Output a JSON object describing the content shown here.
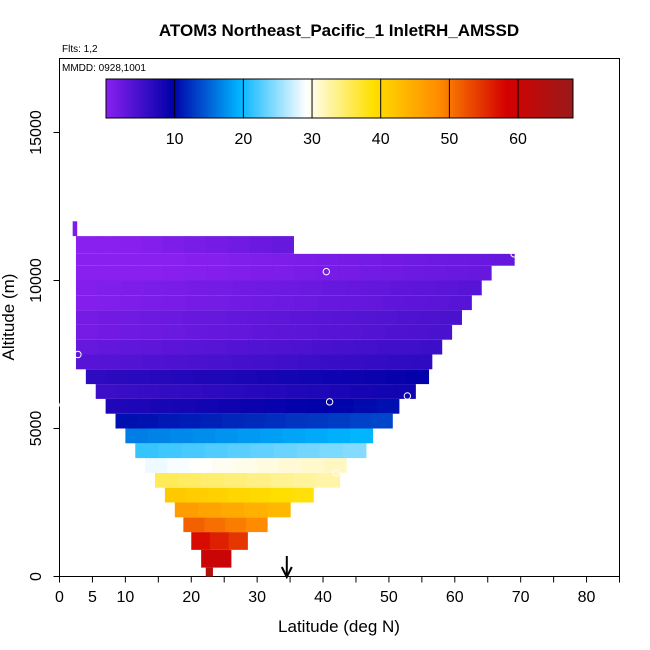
{
  "chart_data": {
    "type": "heatmap",
    "title": "ATOM3 Northeast_Pacific_1 InletRH_AMSSD",
    "flights_note": "Flts: 1,2",
    "date_note": "MMDD: 0928,1001",
    "xlabel": "Latitude (deg N)",
    "ylabel": "Altitude (m)",
    "xlim": [
      0,
      85
    ],
    "ylim": [
      0,
      17500
    ],
    "x_ticks": [
      0,
      5,
      10,
      20,
      30,
      40,
      50,
      60,
      70,
      80
    ],
    "y_ticks": [
      0,
      5000,
      10000,
      15000
    ],
    "colorbar": {
      "range": [
        0,
        68
      ],
      "ticks": [
        10,
        20,
        30,
        40,
        50,
        60
      ],
      "colors": [
        "#8a20f0",
        "#0000a8",
        "#00b4ff",
        "#ffffff",
        "#ffe000",
        "#ff8a00",
        "#d40000",
        "#9a1a1a"
      ]
    },
    "bands": [
      {
        "alt_lo": 0,
        "alt_hi": 300,
        "lat_lo": 22.2,
        "lat_hi": 23.2,
        "rh": 64
      },
      {
        "alt_lo": 300,
        "alt_hi": 900,
        "lat_lo": 21.5,
        "lat_hi": 26.0,
        "rh": 60
      },
      {
        "alt_lo": 900,
        "alt_hi": 1500,
        "lat_lo": 20.0,
        "lat_hi": 28.5,
        "rh": 56
      },
      {
        "alt_lo": 1500,
        "alt_hi": 2000,
        "lat_lo": 18.8,
        "lat_hi": 31.5,
        "rh": 50
      },
      {
        "alt_lo": 2000,
        "alt_hi": 2500,
        "lat_lo": 17.5,
        "lat_hi": 35.0,
        "rh": 45
      },
      {
        "alt_lo": 2500,
        "alt_hi": 3000,
        "lat_lo": 16.0,
        "lat_hi": 38.5,
        "rh": 40
      },
      {
        "alt_lo": 3000,
        "alt_hi": 3500,
        "lat_lo": 14.5,
        "lat_hi": 42.5,
        "rh": 34
      },
      {
        "alt_lo": 3500,
        "alt_hi": 4000,
        "lat_lo": 13.0,
        "lat_hi": 43.5,
        "rh": 30
      },
      {
        "alt_lo": 4000,
        "alt_hi": 4500,
        "lat_lo": 11.5,
        "lat_hi": 46.5,
        "rh": 23
      },
      {
        "alt_lo": 4500,
        "alt_hi": 5000,
        "lat_lo": 10.0,
        "lat_hi": 47.5,
        "rh": 18
      },
      {
        "alt_lo": 5000,
        "alt_hi": 5500,
        "lat_lo": 8.5,
        "lat_hi": 50.5,
        "rh": 12
      },
      {
        "alt_lo": 5500,
        "alt_hi": 6000,
        "lat_lo": 7.0,
        "lat_hi": 51.5,
        "rh": 9
      },
      {
        "alt_lo": 6000,
        "alt_hi": 6500,
        "lat_lo": 5.5,
        "lat_hi": 54.0,
        "rh": 7
      },
      {
        "alt_lo": 6500,
        "alt_hi": 7000,
        "lat_lo": 4.0,
        "lat_hi": 56.0,
        "rh": 8
      },
      {
        "alt_lo": 7000,
        "alt_hi": 7500,
        "lat_lo": 2.5,
        "lat_hi": 56.5,
        "rh": 5
      },
      {
        "alt_lo": 7500,
        "alt_hi": 8000,
        "lat_lo": 2.5,
        "lat_hi": 58.0,
        "rh": 4
      },
      {
        "alt_lo": 8000,
        "alt_hi": 8500,
        "lat_lo": 2.5,
        "lat_hi": 59.5,
        "rh": 3
      },
      {
        "alt_lo": 8500,
        "alt_hi": 9000,
        "lat_lo": 2.5,
        "lat_hi": 61.0,
        "rh": 3
      },
      {
        "alt_lo": 9000,
        "alt_hi": 9500,
        "lat_lo": 2.5,
        "lat_hi": 62.5,
        "rh": 2
      },
      {
        "alt_lo": 9500,
        "alt_hi": 10000,
        "lat_lo": 2.5,
        "lat_hi": 64.0,
        "rh": 2
      },
      {
        "alt_lo": 10000,
        "alt_hi": 10500,
        "lat_lo": 2.5,
        "lat_hi": 65.5,
        "rh": 1
      },
      {
        "alt_lo": 10500,
        "alt_hi": 10900,
        "lat_lo": 2.5,
        "lat_hi": 69.0,
        "rh": 1
      },
      {
        "alt_lo": 10900,
        "alt_hi": 11500,
        "lat_lo": 2.5,
        "lat_hi": 35.5,
        "rh": 1
      },
      {
        "alt_lo": 11500,
        "alt_hi": 12000,
        "lat_lo": 2.0,
        "lat_hi": 2.6,
        "rh": 1
      }
    ],
    "markers": [
      {
        "lat": 40.5,
        "alt": 10300
      },
      {
        "lat": 69.0,
        "alt": 10900
      },
      {
        "lat": 2.8,
        "alt": 7500
      },
      {
        "lat": 41.0,
        "alt": 5900
      },
      {
        "lat": 52.8,
        "alt": 6100
      },
      {
        "lat": 42.0,
        "alt": 3500
      },
      {
        "lat": -0.5,
        "alt": 5800
      }
    ],
    "arrow_lat": 34.5
  }
}
